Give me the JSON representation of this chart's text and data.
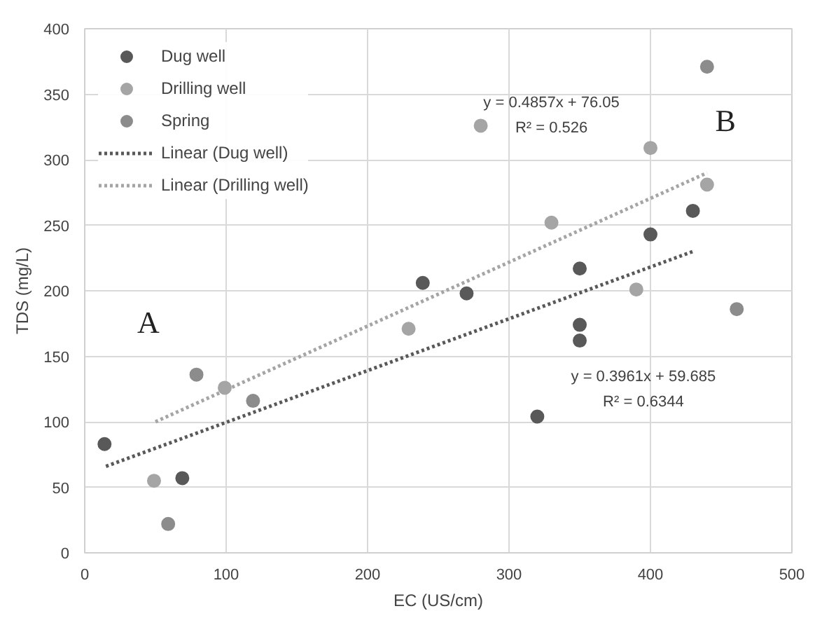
{
  "chart_data": {
    "type": "scatter",
    "xlabel": "EC (US/cm)",
    "ylabel": "TDS (mg/L)",
    "xlim": [
      0,
      500
    ],
    "xticks": [
      0,
      100,
      200,
      300,
      400,
      500
    ],
    "ylim": [
      0,
      400
    ],
    "yticks": [
      0,
      50,
      100,
      150,
      200,
      250,
      300,
      350,
      400
    ],
    "grid": true,
    "legend": "top left",
    "marker": "circle",
    "series": [
      {
        "name": "Dug well",
        "color": "#595959",
        "x": [
          14,
          69,
          239,
          270,
          350,
          350,
          350,
          320,
          400,
          430
        ],
        "values": [
          83,
          57,
          206,
          198,
          217,
          174,
          162,
          104,
          243,
          261
        ]
      },
      {
        "name": "Drilling well",
        "color": "#a5a5a5",
        "x": [
          49,
          99,
          229,
          280,
          330,
          390,
          440,
          400
        ],
        "values": [
          55,
          126,
          171,
          326,
          252,
          201,
          281,
          309
        ]
      },
      {
        "name": "Spring",
        "color": "#8c8c8c",
        "x": [
          79,
          59,
          119,
          461,
          440
        ],
        "values": [
          136,
          22,
          116,
          186,
          371
        ]
      },
      {
        "name": "Linear (Dug well)",
        "type": "line",
        "line_style": "dotted",
        "marker": "none",
        "color": "#595959",
        "x": [
          15,
          430
        ],
        "values": [
          66,
          230
        ]
      },
      {
        "name": "Linear (Drilling well)",
        "type": "line",
        "line_style": "dotted",
        "marker": "none",
        "color": "#a5a5a5",
        "x": [
          50,
          440
        ],
        "values": [
          100,
          290
        ]
      }
    ],
    "annotations": [
      "A",
      "B",
      "y = 0.4857x + 76.05",
      "R² = 0.526",
      "y = 0.3961x + 59.685",
      "R² = 0.6344"
    ]
  }
}
